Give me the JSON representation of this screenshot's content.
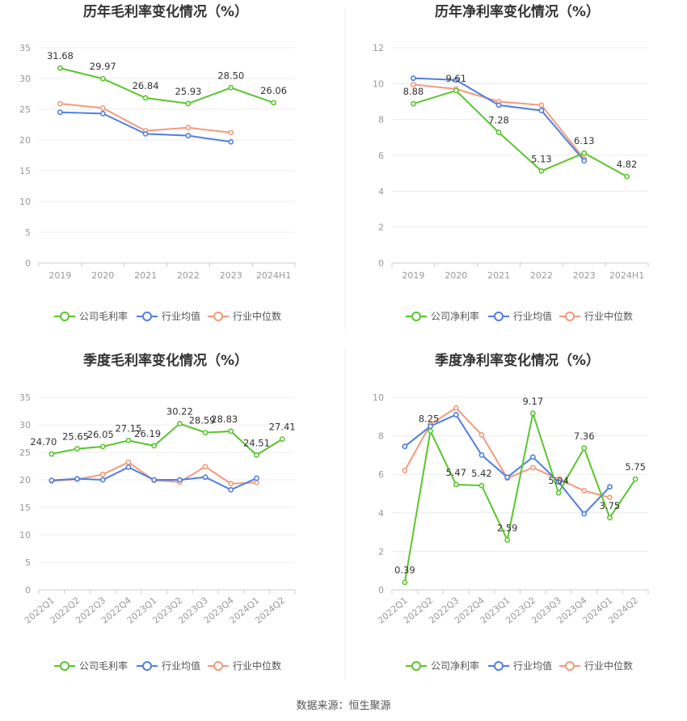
{
  "source_label": "数据来源：恒生聚源",
  "colors": {
    "company": "#5ac52d",
    "industry_avg": "#4f7fe0",
    "industry_median": "#f39a7a"
  },
  "chart_data": [
    {
      "type": "line",
      "title": "历年毛利率变化情况（%）",
      "categories": [
        "2019",
        "2020",
        "2021",
        "2022",
        "2023",
        "2024H1"
      ],
      "ylim": [
        0,
        35
      ],
      "yticks": [
        0,
        5,
        10,
        15,
        20,
        25,
        30,
        35
      ],
      "grid": true,
      "legend_position": "bottom",
      "series": [
        {
          "name": "公司毛利率",
          "values": [
            31.68,
            29.97,
            26.84,
            25.93,
            28.5,
            26.06
          ],
          "labels": [
            "31.68",
            "29.97",
            "26.84",
            "25.93",
            "28.50",
            "26.06"
          ]
        },
        {
          "name": "行业均值",
          "values": [
            24.5,
            24.3,
            21.0,
            20.7,
            19.7,
            null
          ]
        },
        {
          "name": "行业中位数",
          "values": [
            25.9,
            25.2,
            21.5,
            22.0,
            21.2,
            null
          ]
        }
      ]
    },
    {
      "type": "line",
      "title": "历年净利率变化情况（%）",
      "categories": [
        "2019",
        "2020",
        "2021",
        "2022",
        "2023",
        "2024H1"
      ],
      "ylim": [
        0,
        12
      ],
      "yticks": [
        0,
        2,
        4,
        6,
        8,
        10,
        12
      ],
      "grid": true,
      "legend_position": "bottom",
      "series": [
        {
          "name": "公司净利率",
          "values": [
            8.88,
            9.61,
            7.28,
            5.13,
            6.13,
            4.82
          ],
          "labels": [
            "8.88",
            "9.61",
            "7.28",
            "5.13",
            "6.13",
            "4.82"
          ]
        },
        {
          "name": "行业均值",
          "values": [
            10.3,
            10.2,
            8.8,
            8.5,
            5.7,
            null
          ]
        },
        {
          "name": "行业中位数",
          "values": [
            9.95,
            9.7,
            9.0,
            8.8,
            5.8,
            null
          ]
        }
      ]
    },
    {
      "type": "line",
      "title": "季度毛利率变化情况（%）",
      "categories": [
        "2022Q1",
        "2022Q2",
        "2022Q3",
        "2022Q4",
        "2023Q1",
        "2023Q2",
        "2023Q3",
        "2023Q4",
        "2024Q1",
        "2024Q2"
      ],
      "ylim": [
        0,
        35
      ],
      "yticks": [
        0,
        5,
        10,
        15,
        20,
        25,
        30,
        35
      ],
      "grid": true,
      "legend_position": "bottom",
      "series": [
        {
          "name": "公司毛利率",
          "values": [
            24.7,
            25.65,
            26.05,
            27.15,
            26.19,
            30.22,
            28.59,
            28.83,
            24.51,
            27.41
          ],
          "labels": [
            "24.70",
            "25.65",
            "26.05",
            "27.15",
            "26.19",
            "30.22",
            "28.59",
            "28.83",
            "24.51",
            "27.41"
          ]
        },
        {
          "name": "行业均值",
          "values": [
            19.9,
            20.2,
            20.0,
            22.3,
            20.0,
            20.0,
            20.5,
            18.2,
            20.3,
            null
          ]
        },
        {
          "name": "行业中位数",
          "values": [
            19.8,
            20.1,
            21.0,
            23.2,
            19.9,
            19.6,
            22.4,
            19.3,
            19.5,
            null
          ]
        }
      ]
    },
    {
      "type": "line",
      "title": "季度净利率变化情况（%）",
      "categories": [
        "2022Q1",
        "2022Q2",
        "2022Q3",
        "2022Q4",
        "2023Q1",
        "2023Q2",
        "2023Q3",
        "2023Q4",
        "2024Q1",
        "2024Q2"
      ],
      "ylim": [
        0,
        10
      ],
      "yticks": [
        0,
        2,
        4,
        6,
        8,
        10
      ],
      "grid": true,
      "legend_position": "bottom",
      "series": [
        {
          "name": "公司净利率",
          "values": [
            0.39,
            8.25,
            5.47,
            5.42,
            2.59,
            9.17,
            5.04,
            7.36,
            3.75,
            5.75
          ],
          "labels": [
            "0.39",
            "8.25",
            "5.47",
            "5.42",
            "2.59",
            "9.17",
            "5.04",
            "7.36",
            "3.75",
            "5.75"
          ]
        },
        {
          "name": "行业均值",
          "values": [
            7.45,
            8.5,
            9.1,
            7.0,
            5.85,
            6.9,
            5.6,
            3.95,
            5.35,
            null
          ]
        },
        {
          "name": "行业中位数",
          "values": [
            6.2,
            8.6,
            9.45,
            8.05,
            5.8,
            6.35,
            5.75,
            5.15,
            4.8,
            null
          ]
        }
      ]
    }
  ]
}
